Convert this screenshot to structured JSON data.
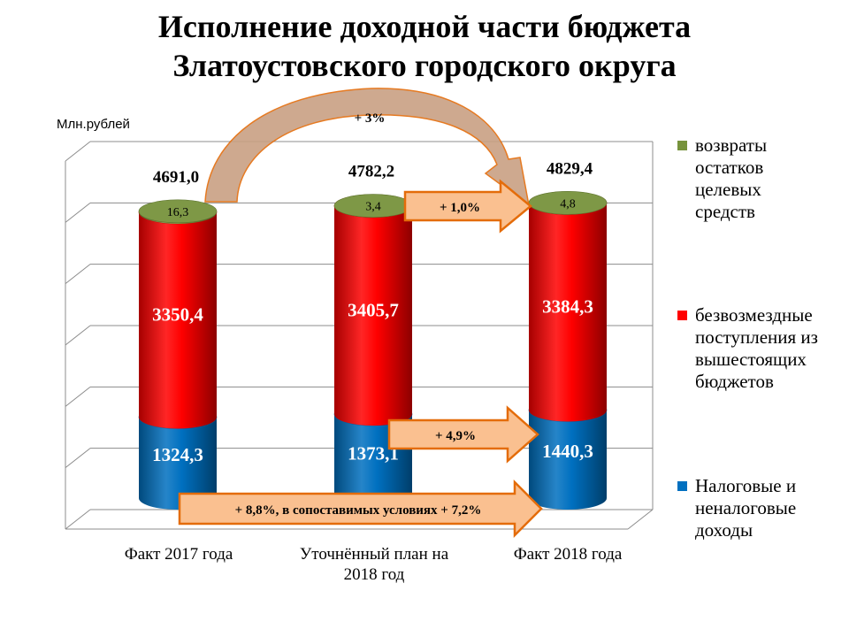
{
  "title": {
    "line1": "Исполнение доходной части бюджета",
    "line2": "Златоустовского городского округа"
  },
  "unit_label": "Млн.рублей",
  "colors": {
    "tax": "#0070C0",
    "grants": "#FF0000",
    "returns": "#77933C",
    "arrow_fill": "#FAC090",
    "arrow_stroke": "#E46C0A"
  },
  "chart_data": {
    "type": "bar",
    "stacked": true,
    "categories": [
      "Факт 2017 года",
      "Уточнённый план на 2018 год",
      "Факт 2018 года"
    ],
    "category_lines": [
      [
        "Факт 2017 года"
      ],
      [
        "Уточнённый план на",
        "2018 год"
      ],
      [
        "Факт 2018 года"
      ]
    ],
    "series": [
      {
        "name": "Налоговые и неналоговые доходы",
        "values": [
          1324.3,
          1373.1,
          1440.3
        ],
        "labels": [
          "1324,3",
          "1373,1",
          "1440,3"
        ],
        "color": "#0070C0"
      },
      {
        "name": "безвозмездные поступления из вышестоящих бюджетов",
        "values": [
          3350.4,
          3405.7,
          3384.3
        ],
        "labels": [
          "3350,4",
          "3405,7",
          "3384,3"
        ],
        "color": "#FF0000"
      },
      {
        "name": "возвраты остатков целевых средств",
        "values": [
          16.3,
          3.4,
          4.8
        ],
        "labels": [
          "16,3",
          "3,4",
          "4,8"
        ],
        "color": "#77933C"
      }
    ],
    "totals": [
      4691.0,
      4782.2,
      4829.4
    ],
    "total_labels": [
      "4691,0",
      "4782,2",
      "4829,4"
    ],
    "annotations": {
      "total_growth": "+ 3%",
      "grants_growth": "+ 1,0%",
      "tax_growth_plan": "+ 4,9%",
      "tax_growth_year": "+ 8,8%, в сопоставимых условиях + 7,2%"
    },
    "legend": {
      "position": "right",
      "items": [
        {
          "lines": [
            "возвраты",
            "остатков",
            "целевых",
            "средств"
          ],
          "color": "#77933C"
        },
        {
          "lines": [
            "безвозмездные",
            "поступления из",
            "вышестоящих",
            "бюджетов"
          ],
          "color": "#FF0000"
        },
        {
          "lines": [
            "Налоговые и",
            "неналоговые",
            "доходы"
          ],
          "color": "#0070C0"
        }
      ]
    },
    "ylabel": "Млн.рублей",
    "grid": true
  }
}
